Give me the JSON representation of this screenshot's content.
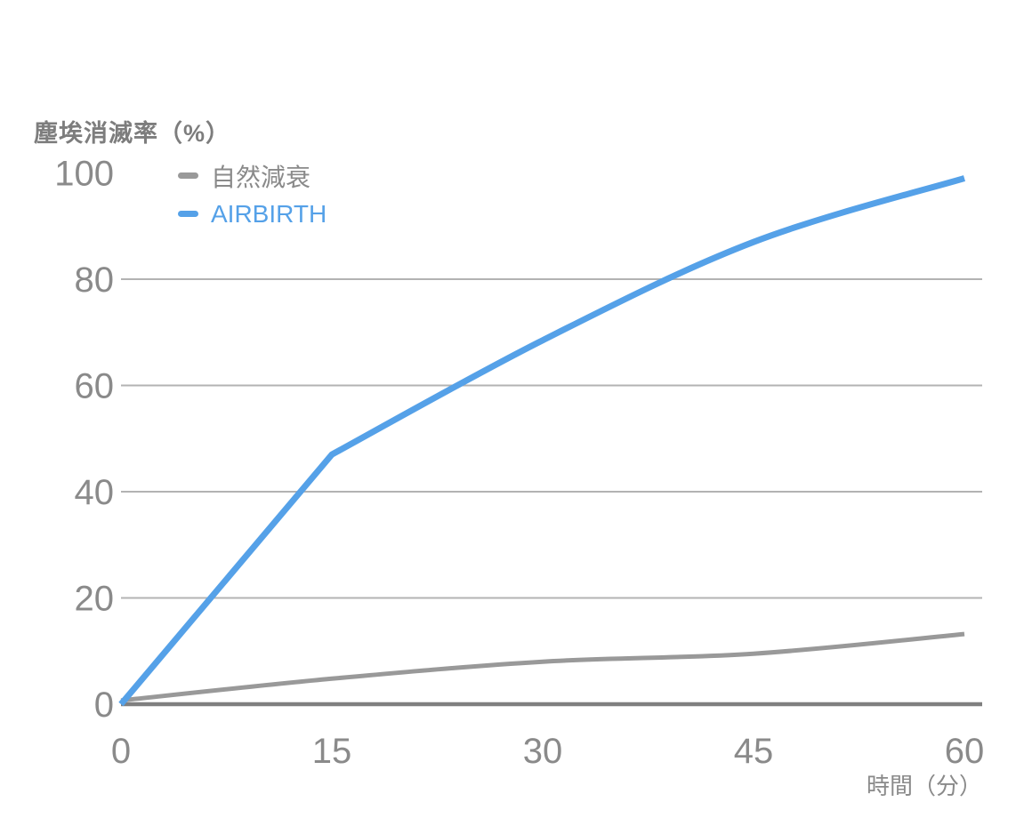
{
  "chart_data": {
    "type": "line",
    "title": "塵埃消滅率（%）",
    "xlabel": "時間（分）",
    "x_ticks": [
      0,
      15,
      30,
      45,
      60
    ],
    "y_ticks": [
      0,
      20,
      40,
      60,
      80,
      100
    ],
    "gridline_ticks": [
      20,
      40,
      60,
      80
    ],
    "xlim": [
      0,
      60
    ],
    "ylim": [
      0,
      100
    ],
    "grid": "horizontal",
    "legend_position": "top-left-inside",
    "series": [
      {
        "name": "自然減衰",
        "color": "#999999",
        "stroke_width": 5,
        "smooth": true,
        "points": [
          [
            0,
            0.7
          ],
          [
            15,
            4.8
          ],
          [
            30,
            8.0
          ],
          [
            45,
            9.5
          ],
          [
            60,
            13.2
          ]
        ]
      },
      {
        "name": "AIRBIRTH",
        "color": "#55a1e8",
        "stroke_width": 7,
        "smooth": true,
        "corner_index": 1,
        "points": [
          [
            0,
            0
          ],
          [
            15,
            47
          ],
          [
            30,
            68.5
          ],
          [
            45,
            87
          ],
          [
            60,
            99
          ]
        ]
      }
    ]
  },
  "colors": {
    "background": "#ffffff",
    "gridline": "#b3b3b3",
    "axis_baseline": "#7f7f7f",
    "tick_text": "#8a8a8a",
    "title_text": "#7d7d7d"
  }
}
